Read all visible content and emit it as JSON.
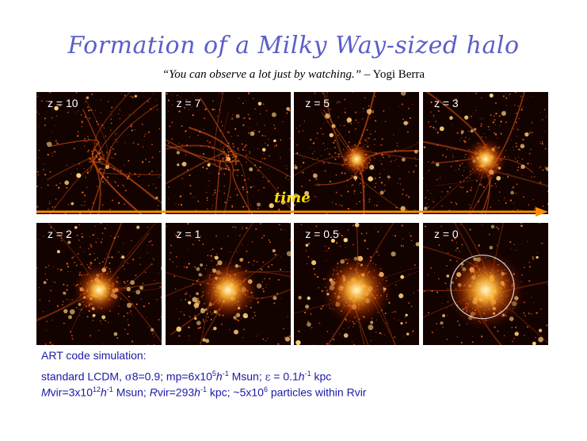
{
  "title": "Formation of a Milky Way-sized halo",
  "quote": {
    "text": "“You can observe a lot just by watching.”",
    "attribution": " – Yogi Berra"
  },
  "arrow_label": "time",
  "panels": [
    {
      "label": "z = 10",
      "stage": 0
    },
    {
      "label": "z = 7",
      "stage": 1
    },
    {
      "label": "z = 5",
      "stage": 2
    },
    {
      "label": "z = 3",
      "stage": 3
    },
    {
      "label": "z = 2",
      "stage": 4
    },
    {
      "label": "z = 1",
      "stage": 5
    },
    {
      "label": "z = 0.5",
      "stage": 6
    },
    {
      "label": "z = 0",
      "stage": 7,
      "virial_circle": true
    }
  ],
  "caption": {
    "line1": "ART code simulation:",
    "line2": {
      "a": "standard LCDM,  ",
      "sigma": "σ",
      "b": "8=0.9;  mp=6x10",
      "sup1": "5",
      "c": "h",
      "sup2": "-1",
      "d": " Msun; ",
      "eps": "ε",
      "e": " = 0.1",
      "f": "h",
      "sup3": "-1",
      "g": " kpc"
    },
    "line3": {
      "a": "M",
      "b": "vir=3x10",
      "sup1": "12",
      "c": "h",
      "sup2": "-1",
      "d": " Msun; ",
      "e": "R",
      "f": "vir=293",
      "g": "h",
      "sup3": "-1",
      "h": " kpc; ~5x10",
      "sup4": "6",
      "i": " particles within Rvir"
    }
  },
  "colors": {
    "title": "#5b5fc7",
    "caption": "#1a1aa8",
    "arrow": "#ff8c00",
    "time_label": "#ffe000",
    "panel_bg": "#120200"
  }
}
